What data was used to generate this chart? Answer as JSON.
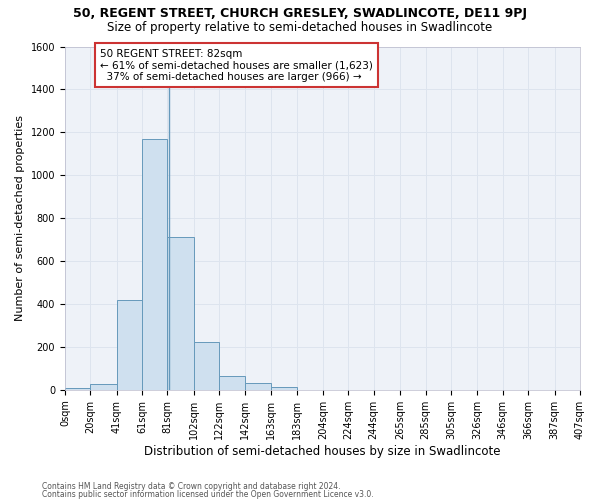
{
  "title": "50, REGENT STREET, CHURCH GRESLEY, SWADLINCOTE, DE11 9PJ",
  "subtitle": "Size of property relative to semi-detached houses in Swadlincote",
  "xlabel": "Distribution of semi-detached houses by size in Swadlincote",
  "ylabel": "Number of semi-detached properties",
  "footnote1": "Contains HM Land Registry data © Crown copyright and database right 2024.",
  "footnote2": "Contains public sector information licensed under the Open Government Licence v3.0.",
  "bar_left_edges": [
    0,
    20,
    41,
    61,
    81,
    102,
    122,
    142,
    163
  ],
  "bar_heights": [
    10,
    25,
    420,
    1170,
    710,
    225,
    65,
    30,
    15
  ],
  "bar_widths": [
    20,
    21,
    20,
    20,
    21,
    20,
    20,
    21,
    20
  ],
  "bar_color": "#cfe0ef",
  "bar_edgecolor": "#6699bb",
  "property_line_x": 82,
  "annotation_text": "50 REGENT STREET: 82sqm\n← 61% of semi-detached houses are smaller (1,623)\n  37% of semi-detached houses are larger (966) →",
  "annotation_box_color": "#ffffff",
  "annotation_box_edgecolor": "#cc3333",
  "ylim": [
    0,
    1600
  ],
  "xtick_positions": [
    0,
    20,
    41,
    61,
    81,
    102,
    122,
    142,
    163,
    183,
    204,
    224,
    244,
    265,
    285,
    305,
    326,
    346,
    366,
    387,
    407
  ],
  "xtick_labels": [
    "0sqm",
    "20sqm",
    "41sqm",
    "61sqm",
    "81sqm",
    "102sqm",
    "122sqm",
    "142sqm",
    "163sqm",
    "183sqm",
    "204sqm",
    "224sqm",
    "244sqm",
    "265sqm",
    "285sqm",
    "305sqm",
    "326sqm",
    "346sqm",
    "366sqm",
    "387sqm",
    "407sqm"
  ],
  "ytick_positions": [
    0,
    200,
    400,
    600,
    800,
    1000,
    1200,
    1400,
    1600
  ],
  "xlim": [
    0,
    407
  ],
  "grid_color": "#dde4ee",
  "background_color": "#eef2f8",
  "title_fontsize": 9,
  "subtitle_fontsize": 8.5,
  "tick_fontsize": 7,
  "ylabel_fontsize": 8,
  "xlabel_fontsize": 8.5,
  "annotation_fontsize": 7.5
}
